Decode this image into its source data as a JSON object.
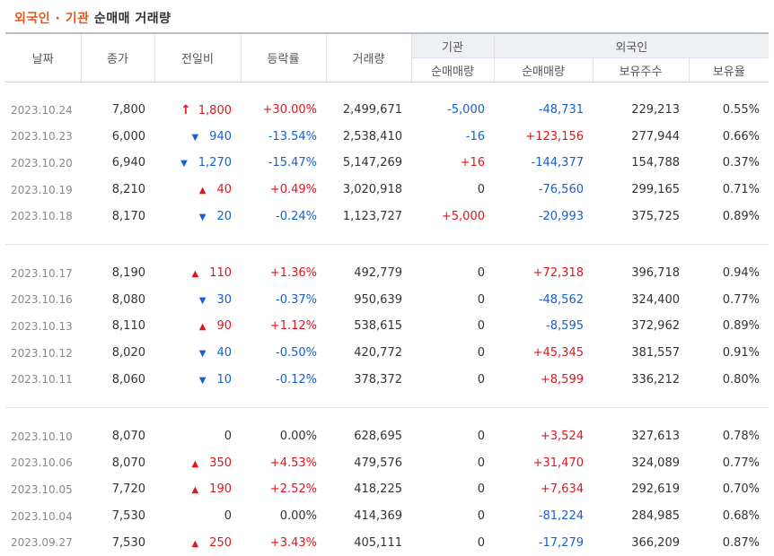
{
  "title": {
    "part1": "외국인",
    "dot": " · ",
    "part2": "기관",
    "rest": " 순매매 거래량"
  },
  "headers": {
    "date": "날짜",
    "close": "종가",
    "change": "전일비",
    "rate": "등락률",
    "volume": "거래량",
    "inst_group": "기관",
    "inst_net": "순매매량",
    "foreign_group": "외국인",
    "foreign_net": "순매매량",
    "foreign_holdings": "보유주수",
    "foreign_ratio": "보유율"
  },
  "colors": {
    "accent": "#e2571b",
    "up": "#e0151f",
    "down": "#1560d0"
  },
  "groups": [
    [
      {
        "date": "2023.10.24",
        "close": "7,800",
        "dir": "upper",
        "change": "1,800",
        "rate": "+30.00%",
        "volume": "2,499,671",
        "inst": "-5,000",
        "foreign": "-48,731",
        "holdings": "229,213",
        "ratio": "0.55%"
      },
      {
        "date": "2023.10.23",
        "close": "6,000",
        "dir": "down",
        "change": "940",
        "rate": "-13.54%",
        "volume": "2,538,410",
        "inst": "-16",
        "foreign": "+123,156",
        "holdings": "277,944",
        "ratio": "0.66%"
      },
      {
        "date": "2023.10.20",
        "close": "6,940",
        "dir": "down",
        "change": "1,270",
        "rate": "-15.47%",
        "volume": "5,147,269",
        "inst": "+16",
        "foreign": "-144,377",
        "holdings": "154,788",
        "ratio": "0.37%"
      },
      {
        "date": "2023.10.19",
        "close": "8,210",
        "dir": "up",
        "change": "40",
        "rate": "+0.49%",
        "volume": "3,020,918",
        "inst": "0",
        "foreign": "-76,560",
        "holdings": "299,165",
        "ratio": "0.71%"
      },
      {
        "date": "2023.10.18",
        "close": "8,170",
        "dir": "down",
        "change": "20",
        "rate": "-0.24%",
        "volume": "1,123,727",
        "inst": "+5,000",
        "foreign": "-20,993",
        "holdings": "375,725",
        "ratio": "0.89%"
      }
    ],
    [
      {
        "date": "2023.10.17",
        "close": "8,190",
        "dir": "up",
        "change": "110",
        "rate": "+1.36%",
        "volume": "492,779",
        "inst": "0",
        "foreign": "+72,318",
        "holdings": "396,718",
        "ratio": "0.94%"
      },
      {
        "date": "2023.10.16",
        "close": "8,080",
        "dir": "down",
        "change": "30",
        "rate": "-0.37%",
        "volume": "950,639",
        "inst": "0",
        "foreign": "-48,562",
        "holdings": "324,400",
        "ratio": "0.77%"
      },
      {
        "date": "2023.10.13",
        "close": "8,110",
        "dir": "up",
        "change": "90",
        "rate": "+1.12%",
        "volume": "538,615",
        "inst": "0",
        "foreign": "-8,595",
        "holdings": "372,962",
        "ratio": "0.89%"
      },
      {
        "date": "2023.10.12",
        "close": "8,020",
        "dir": "down",
        "change": "40",
        "rate": "-0.50%",
        "volume": "420,772",
        "inst": "0",
        "foreign": "+45,345",
        "holdings": "381,557",
        "ratio": "0.91%"
      },
      {
        "date": "2023.10.11",
        "close": "8,060",
        "dir": "down",
        "change": "10",
        "rate": "-0.12%",
        "volume": "378,372",
        "inst": "0",
        "foreign": "+8,599",
        "holdings": "336,212",
        "ratio": "0.80%"
      }
    ],
    [
      {
        "date": "2023.10.10",
        "close": "8,070",
        "dir": "flat",
        "change": "0",
        "rate": "0.00%",
        "volume": "628,695",
        "inst": "0",
        "foreign": "+3,524",
        "holdings": "327,613",
        "ratio": "0.78%"
      },
      {
        "date": "2023.10.06",
        "close": "8,070",
        "dir": "up",
        "change": "350",
        "rate": "+4.53%",
        "volume": "479,576",
        "inst": "0",
        "foreign": "+31,470",
        "holdings": "324,089",
        "ratio": "0.77%"
      },
      {
        "date": "2023.10.05",
        "close": "7,720",
        "dir": "up",
        "change": "190",
        "rate": "+2.52%",
        "volume": "418,225",
        "inst": "0",
        "foreign": "+7,634",
        "holdings": "292,619",
        "ratio": "0.70%"
      },
      {
        "date": "2023.10.04",
        "close": "7,530",
        "dir": "flat",
        "change": "0",
        "rate": "0.00%",
        "volume": "414,369",
        "inst": "0",
        "foreign": "-81,224",
        "holdings": "284,985",
        "ratio": "0.68%"
      },
      {
        "date": "2023.09.27",
        "close": "7,530",
        "dir": "up",
        "change": "250",
        "rate": "+3.43%",
        "volume": "405,111",
        "inst": "0",
        "foreign": "-17,279",
        "holdings": "366,209",
        "ratio": "0.87%"
      }
    ]
  ]
}
